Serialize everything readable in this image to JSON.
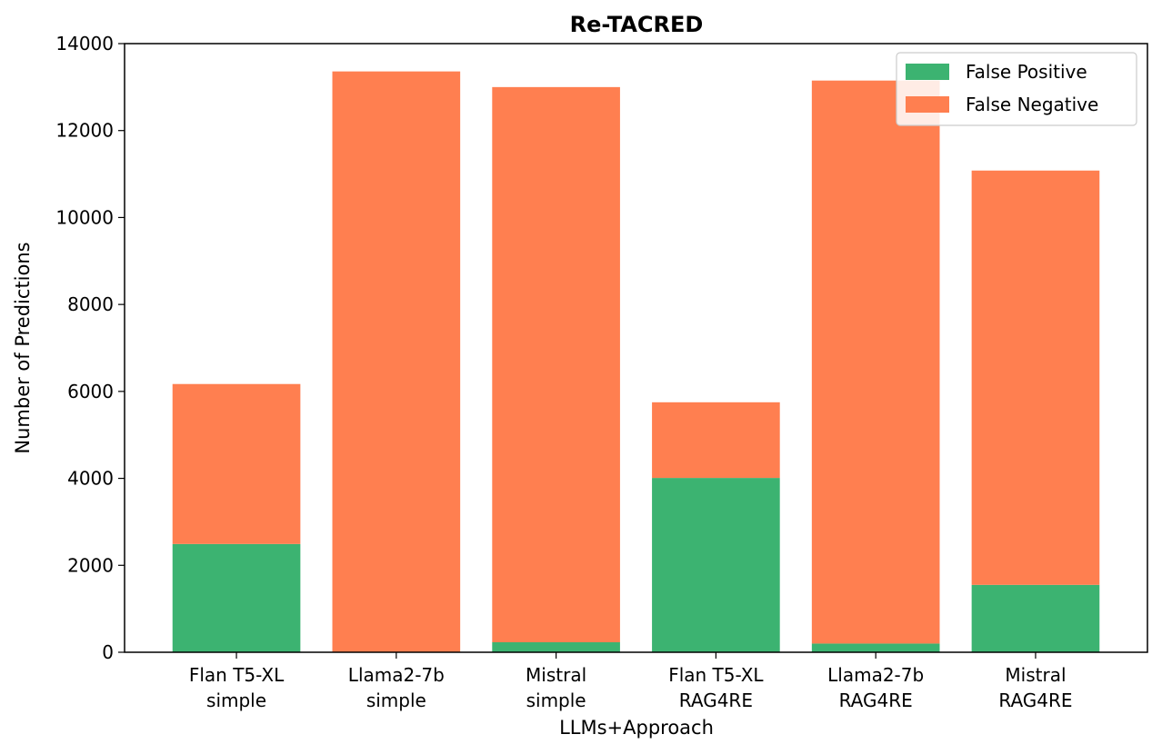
{
  "chart_data": {
    "type": "bar",
    "stacked": true,
    "title": "Re-TACRED",
    "xlabel": "LLMs+Approach",
    "ylabel": "Number of Predictions",
    "ylim": [
      0,
      14000
    ],
    "yticks": [
      0,
      2000,
      4000,
      6000,
      8000,
      10000,
      12000,
      14000
    ],
    "categories": [
      [
        "Flan T5-XL",
        "simple"
      ],
      [
        "Llama2-7b",
        "simple"
      ],
      [
        "Mistral",
        "simple"
      ],
      [
        "Flan T5-XL",
        "RAG4RE"
      ],
      [
        "Llama2-7b",
        "RAG4RE"
      ],
      [
        "Mistral",
        "RAG4RE"
      ]
    ],
    "series": [
      {
        "name": "False Positive",
        "color": "#3cb371",
        "values": [
          2490,
          0,
          230,
          4010,
          200,
          1550
        ]
      },
      {
        "name": "False Negative",
        "color": "#ff7f50",
        "values": [
          3680,
          13360,
          12770,
          1740,
          12950,
          9530
        ]
      }
    ],
    "legend_position": "top-right",
    "grid": false
  }
}
